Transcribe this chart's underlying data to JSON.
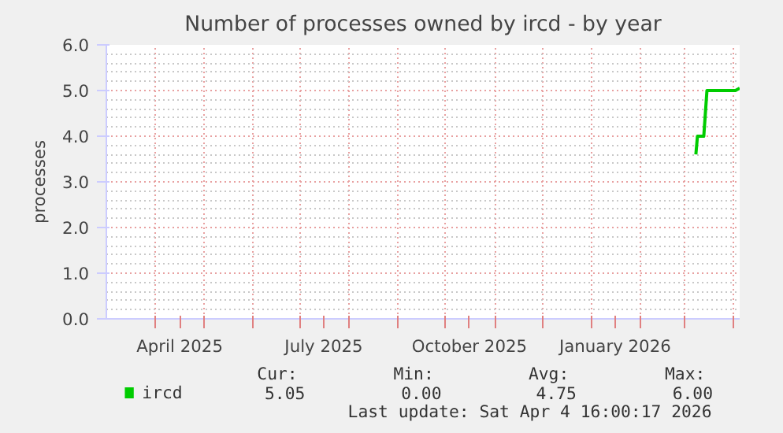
{
  "chart_data": {
    "type": "line",
    "title": "Number of processes owned by ircd - by year",
    "ylabel": "processes",
    "x": [
      "2026-03-08",
      "2026-03-09",
      "2026-03-13",
      "2026-03-15",
      "2026-04-02",
      "2026-04-04T16:00"
    ],
    "series": [
      {
        "name": "ircd",
        "color": "#00cc00",
        "values": [
          3.6,
          4.0,
          4.0,
          5.0,
          5.0,
          5.05
        ]
      }
    ],
    "xlim": [
      "2025-02-28T16:00",
      "2026-04-04T16:00"
    ],
    "xticks": [
      {
        "value": "2025-04-01",
        "label": null
      },
      {
        "value": "2025-04-16",
        "label": "April 2025"
      },
      {
        "value": "2025-05-01",
        "label": null
      },
      {
        "value": "2025-06-01",
        "label": null
      },
      {
        "value": "2025-07-01",
        "label": null
      },
      {
        "value": "2025-07-16",
        "label": "July 2025"
      },
      {
        "value": "2025-08-01",
        "label": null
      },
      {
        "value": "2025-09-01",
        "label": null
      },
      {
        "value": "2025-10-01",
        "label": null
      },
      {
        "value": "2025-10-16",
        "label": "October 2025"
      },
      {
        "value": "2025-11-01",
        "label": null
      },
      {
        "value": "2025-12-01",
        "label": null
      },
      {
        "value": "2026-01-01",
        "label": null
      },
      {
        "value": "2026-01-16",
        "label": "January 2026"
      },
      {
        "value": "2026-02-01",
        "label": null
      },
      {
        "value": "2026-03-01",
        "label": null
      },
      {
        "value": "2026-04-01",
        "label": null
      }
    ],
    "ylim": [
      0,
      6
    ],
    "yticks": [
      {
        "value": 0,
        "label": "0.0"
      },
      {
        "value": 1,
        "label": "1.0"
      },
      {
        "value": 2,
        "label": "2.0"
      },
      {
        "value": 3,
        "label": "3.0"
      },
      {
        "value": 4,
        "label": "4.0"
      },
      {
        "value": 5,
        "label": "5.0"
      },
      {
        "value": 6,
        "label": "6.0"
      }
    ],
    "grid": true,
    "legend": "bottom left",
    "line_style": "solid",
    "annotations": [
      "Cur:",
      "Min:",
      "Avg:",
      "Max:",
      "5.05",
      "0.00",
      "4.75",
      "6.00",
      "Last update: Sat Apr  4 16:00:17 2026"
    ]
  }
}
